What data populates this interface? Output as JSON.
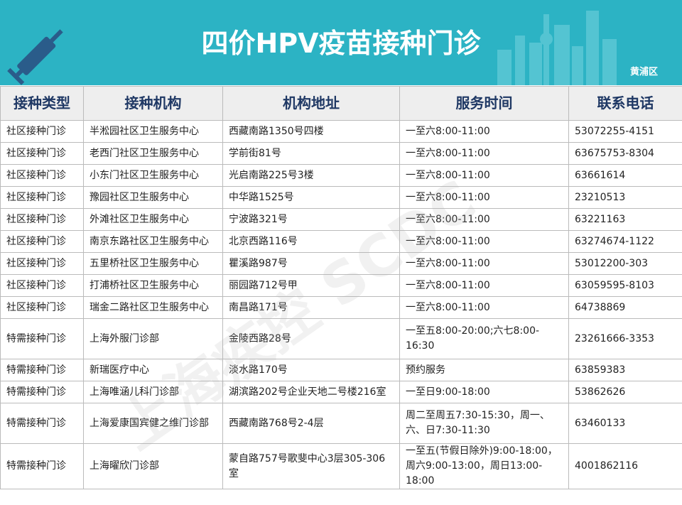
{
  "header": {
    "title": "四价HPV疫苗接种门诊",
    "district": "黄浦区"
  },
  "watermark": "上海疾控 SCDC",
  "table": {
    "columns": [
      "接种类型",
      "接种机构",
      "机构地址",
      "服务时间",
      "联系电话"
    ],
    "rows": [
      [
        "社区接种门诊",
        "半淞园社区卫生服务中心",
        "西藏南路1350号四楼",
        "一至六8:00-11:00",
        "53072255-4151"
      ],
      [
        "社区接种门诊",
        "老西门社区卫生服务中心",
        "学前街81号",
        "一至六8:00-11:00",
        "63675753-8304"
      ],
      [
        "社区接种门诊",
        "小东门社区卫生服务中心",
        "光启南路225号3楼",
        "一至六8:00-11:00",
        "63661614"
      ],
      [
        "社区接种门诊",
        "豫园社区卫生服务中心",
        "中华路1525号",
        "一至六8:00-11:00",
        "23210513"
      ],
      [
        "社区接种门诊",
        "外滩社区卫生服务中心",
        "宁波路321号",
        "一至六8:00-11:00",
        "63221163"
      ],
      [
        "社区接种门诊",
        "南京东路社区卫生服务中心",
        "北京西路116号",
        "一至六8:00-11:00",
        "63274674-1122"
      ],
      [
        "社区接种门诊",
        "五里桥社区卫生服务中心",
        "瞿溪路987号",
        "一至六8:00-11:00",
        "53012200-303"
      ],
      [
        "社区接种门诊",
        "打浦桥社区卫生服务中心",
        "丽园路712号甲",
        "一至六8:00-11:00",
        "63059595-8103"
      ],
      [
        "社区接种门诊",
        "瑞金二路社区卫生服务中心",
        "南昌路171号",
        "一至六8:00-11:00",
        "64738869"
      ],
      [
        "特需接种门诊",
        "上海外服门诊部",
        "金陵西路28号",
        "一至五8:00-20:00;六七8:00-16:30",
        "23261666-3353"
      ],
      [
        "特需接种门诊",
        "新瑞医疗中心",
        "淡水路170号",
        "预约服务",
        "63859383"
      ],
      [
        "特需接种门诊",
        "上海唯涵儿科门诊部",
        "湖滨路202号企业天地二号楼216室",
        "一至日9:00-18:00",
        "53862626"
      ],
      [
        "特需接种门诊",
        "上海爱康国宾健之维门诊部",
        "西藏南路768号2-4层",
        "周二至周五7:30-15:30，周一、六、日7:30-11:30",
        "63460133"
      ],
      [
        "特需接种门诊",
        "上海曜欣门诊部",
        "蒙自路757号歌斐中心3层305-306室",
        "一至五(节假日除外)9:00-18:00，周六9:00-13:00，周日13:00-18:00",
        "4001862116"
      ]
    ]
  }
}
